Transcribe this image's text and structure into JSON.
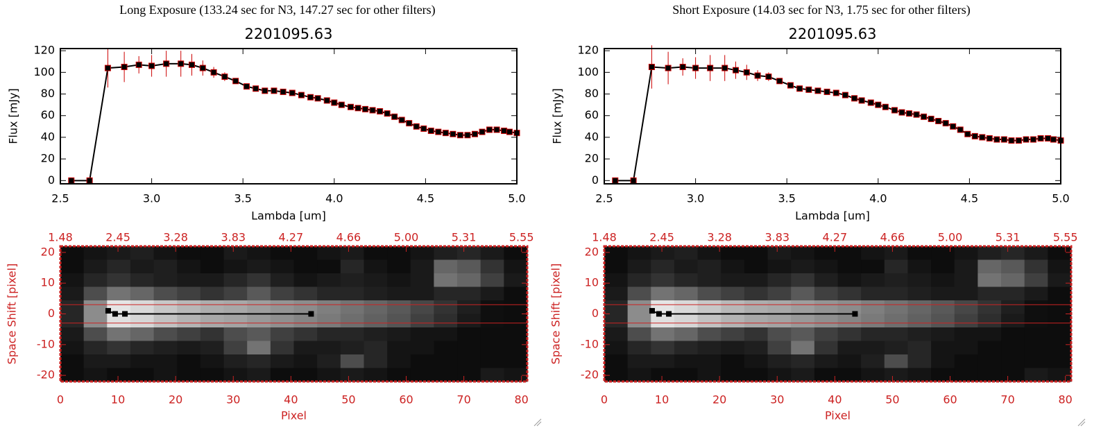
{
  "chart_data": [
    {
      "type": "line",
      "title": "Long Exposure (133.24 sec for N3, 147.27 sec for other filters)",
      "subtitle": "2201095.63",
      "x_label": "Lambda [um]",
      "y_label": "Flux [mJy]",
      "color": "#000000",
      "error_color": "#cc0000",
      "x": [
        2.56,
        2.66,
        2.76,
        2.85,
        2.93,
        3.0,
        3.08,
        3.16,
        3.22,
        3.28,
        3.34,
        3.4,
        3.46,
        3.52,
        3.57,
        3.62,
        3.67,
        3.72,
        3.77,
        3.82,
        3.87,
        3.91,
        3.96,
        4.0,
        4.04,
        4.09,
        4.13,
        4.17,
        4.21,
        4.25,
        4.29,
        4.33,
        4.37,
        4.41,
        4.45,
        4.49,
        4.53,
        4.57,
        4.61,
        4.65,
        4.69,
        4.73,
        4.77,
        4.81,
        4.85,
        4.89,
        4.93,
        4.96,
        5.0
      ],
      "values": [
        0,
        0,
        104,
        105,
        107,
        106,
        108,
        108,
        107,
        104,
        100,
        96,
        92,
        87,
        85,
        83,
        83,
        82,
        81,
        79,
        77,
        76,
        74,
        72,
        70,
        68,
        67,
        66,
        65,
        64,
        62,
        59,
        56,
        53,
        50,
        48,
        46,
        45,
        44,
        43,
        42,
        42,
        43,
        45,
        47,
        47,
        46,
        45,
        44
      ],
      "errors": [
        0,
        0,
        18,
        14,
        8,
        10,
        12,
        12,
        10,
        7,
        5,
        4,
        2,
        2,
        1,
        1,
        1,
        1,
        1,
        1,
        1,
        1,
        1,
        1,
        1,
        1,
        1,
        1,
        1,
        1,
        1,
        1,
        1,
        1,
        1,
        1,
        1,
        1,
        1,
        1,
        1,
        1,
        1,
        1,
        2,
        1,
        1,
        1,
        1
      ],
      "xlim": [
        2.5,
        5.0
      ],
      "xticks": [
        2.5,
        {
          "value": 3,
          "label": "3.0"
        },
        3.5,
        {
          "value": 4,
          "label": "4.0"
        },
        4.5,
        {
          "value": 5,
          "label": "5.0"
        }
      ],
      "ylim": [
        -3,
        122
      ],
      "yticks": [
        0,
        20,
        40,
        60,
        80,
        100,
        120
      ]
    },
    {
      "type": "heatmap",
      "x_label": "Pixel",
      "y_label": "Space Shift [pixel]",
      "axis_color": "#cc2222",
      "xlim": [
        0,
        81
      ],
      "xticks": [
        0,
        10,
        20,
        30,
        40,
        50,
        60,
        70,
        80
      ],
      "x2ticks": [
        {
          "value": 0,
          "label": "1.48"
        },
        {
          "value": 10,
          "label": "2.45"
        },
        {
          "value": 20,
          "label": "3.28"
        },
        {
          "value": 30,
          "label": "3.83"
        },
        {
          "value": 40,
          "label": "4.27"
        },
        {
          "value": 50,
          "label": "4.66"
        },
        {
          "value": 60,
          "label": "5.00"
        },
        {
          "value": 70,
          "label": "5.31"
        },
        {
          "value": 80,
          "label": "5.55"
        }
      ],
      "ylim": [
        -22,
        22
      ],
      "yticks": [
        -20,
        -10,
        0,
        10,
        20
      ],
      "hlines": [
        3,
        -3
      ],
      "trace": {
        "x": [
          8.3,
          9.5,
          11.2,
          43.5
        ],
        "values": [
          1,
          0,
          0,
          0
        ]
      },
      "values": [
        [
          5,
          8,
          10,
          12,
          8,
          5,
          5,
          10,
          8,
          5,
          5,
          8,
          10,
          5,
          5,
          8,
          12,
          15,
          10,
          5
        ],
        [
          5,
          10,
          15,
          10,
          12,
          8,
          5,
          8,
          10,
          8,
          5,
          5,
          15,
          8,
          5,
          10,
          40,
          35,
          20,
          8
        ],
        [
          8,
          15,
          20,
          15,
          12,
          10,
          10,
          15,
          20,
          12,
          8,
          10,
          12,
          10,
          8,
          10,
          45,
          40,
          25,
          10
        ],
        [
          10,
          30,
          45,
          40,
          30,
          25,
          20,
          25,
          35,
          25,
          20,
          15,
          15,
          12,
          10,
          10,
          15,
          15,
          10,
          5
        ],
        [
          15,
          55,
          90,
          85,
          78,
          72,
          68,
          66,
          62,
          58,
          55,
          50,
          45,
          40,
          35,
          28,
          20,
          12,
          6,
          5
        ],
        [
          15,
          55,
          88,
          84,
          76,
          70,
          66,
          64,
          60,
          56,
          52,
          48,
          43,
          38,
          33,
          25,
          18,
          10,
          6,
          5
        ],
        [
          10,
          30,
          45,
          40,
          30,
          25,
          20,
          30,
          35,
          25,
          20,
          15,
          15,
          12,
          10,
          8,
          8,
          5,
          5,
          5
        ],
        [
          8,
          15,
          20,
          15,
          12,
          10,
          12,
          25,
          45,
          20,
          10,
          10,
          12,
          15,
          8,
          8,
          5,
          5,
          5,
          5
        ],
        [
          5,
          10,
          10,
          8,
          8,
          5,
          8,
          12,
          15,
          10,
          8,
          12,
          30,
          15,
          8,
          5,
          5,
          5,
          5,
          5
        ],
        [
          5,
          8,
          5,
          5,
          8,
          5,
          5,
          8,
          10,
          5,
          5,
          8,
          10,
          8,
          5,
          5,
          5,
          5,
          10,
          8
        ]
      ]
    },
    {
      "type": "line",
      "title": "Short Exposure (14.03 sec for N3, 1.75 sec for other filters)",
      "subtitle": "2201095.63",
      "x_label": "Lambda [um]",
      "y_label": "Flux [mJy]",
      "color": "#000000",
      "error_color": "#cc0000",
      "x": [
        2.56,
        2.66,
        2.76,
        2.85,
        2.93,
        3.0,
        3.08,
        3.16,
        3.22,
        3.28,
        3.34,
        3.4,
        3.46,
        3.52,
        3.57,
        3.62,
        3.67,
        3.72,
        3.77,
        3.82,
        3.87,
        3.91,
        3.96,
        4.0,
        4.04,
        4.09,
        4.13,
        4.17,
        4.21,
        4.25,
        4.29,
        4.33,
        4.37,
        4.41,
        4.45,
        4.49,
        4.53,
        4.57,
        4.61,
        4.65,
        4.69,
        4.73,
        4.77,
        4.81,
        4.85,
        4.89,
        4.93,
        4.96,
        5.0
      ],
      "values": [
        0,
        0,
        105,
        104,
        105,
        104,
        104,
        104,
        102,
        100,
        97,
        96,
        92,
        88,
        85,
        84,
        83,
        82,
        81,
        79,
        76,
        74,
        72,
        70,
        68,
        65,
        63,
        62,
        61,
        59,
        57,
        55,
        53,
        50,
        47,
        43,
        41,
        40,
        39,
        38,
        38,
        37,
        37,
        38,
        38,
        39,
        39,
        38,
        37
      ],
      "errors": [
        0,
        0,
        20,
        15,
        8,
        10,
        12,
        12,
        8,
        7,
        5,
        4,
        2,
        2,
        1,
        1,
        1,
        1,
        1,
        1,
        1,
        1,
        1,
        1,
        1,
        1,
        1,
        1,
        1,
        1,
        1,
        1,
        1,
        1,
        1,
        1,
        1,
        1,
        1,
        1,
        1,
        1,
        1,
        1,
        1,
        1,
        1,
        1,
        1
      ],
      "xlim": [
        2.5,
        5.0
      ],
      "xticks": [
        2.5,
        {
          "value": 3,
          "label": "3.0"
        },
        3.5,
        {
          "value": 4,
          "label": "4.0"
        },
        4.5,
        {
          "value": 5,
          "label": "5.0"
        }
      ],
      "ylim": [
        -3,
        122
      ],
      "yticks": [
        0,
        20,
        40,
        60,
        80,
        100,
        120
      ]
    },
    {
      "type": "heatmap",
      "x_label": "Pixel",
      "y_label": "Space Shift [pixel]",
      "axis_color": "#cc2222",
      "xlim": [
        0,
        81
      ],
      "xticks": [
        0,
        10,
        20,
        30,
        40,
        50,
        60,
        70,
        80
      ],
      "x2ticks": [
        {
          "value": 0,
          "label": "1.48"
        },
        {
          "value": 10,
          "label": "2.45"
        },
        {
          "value": 20,
          "label": "3.28"
        },
        {
          "value": 30,
          "label": "3.83"
        },
        {
          "value": 40,
          "label": "4.27"
        },
        {
          "value": 50,
          "label": "4.66"
        },
        {
          "value": 60,
          "label": "5.00"
        },
        {
          "value": 70,
          "label": "5.31"
        },
        {
          "value": 80,
          "label": "5.55"
        }
      ],
      "ylim": [
        -22,
        22
      ],
      "yticks": [
        -20,
        -10,
        0,
        10,
        20
      ],
      "hlines": [
        3,
        -3
      ],
      "trace": {
        "x": [
          8.3,
          9.5,
          11.2,
          43.5
        ],
        "values": [
          1,
          0,
          0,
          0
        ]
      },
      "values": [
        [
          5,
          8,
          10,
          12,
          8,
          5,
          5,
          10,
          8,
          5,
          5,
          8,
          10,
          5,
          5,
          8,
          12,
          15,
          10,
          5
        ],
        [
          5,
          10,
          15,
          10,
          12,
          8,
          5,
          8,
          10,
          8,
          5,
          5,
          15,
          8,
          5,
          10,
          40,
          35,
          20,
          8
        ],
        [
          8,
          15,
          20,
          15,
          12,
          10,
          10,
          15,
          20,
          12,
          8,
          10,
          12,
          10,
          8,
          10,
          45,
          40,
          25,
          10
        ],
        [
          10,
          30,
          45,
          40,
          30,
          25,
          20,
          25,
          35,
          25,
          20,
          15,
          15,
          12,
          10,
          10,
          15,
          15,
          10,
          5
        ],
        [
          15,
          55,
          90,
          85,
          78,
          72,
          68,
          66,
          62,
          58,
          55,
          50,
          45,
          40,
          35,
          28,
          20,
          12,
          6,
          5
        ],
        [
          15,
          55,
          88,
          84,
          76,
          70,
          66,
          64,
          60,
          56,
          52,
          48,
          43,
          38,
          33,
          25,
          18,
          10,
          6,
          5
        ],
        [
          10,
          30,
          45,
          40,
          30,
          25,
          20,
          30,
          35,
          25,
          20,
          15,
          15,
          12,
          10,
          8,
          8,
          5,
          5,
          5
        ],
        [
          8,
          15,
          20,
          15,
          12,
          10,
          12,
          25,
          45,
          20,
          10,
          10,
          12,
          15,
          8,
          8,
          5,
          5,
          5,
          5
        ],
        [
          5,
          10,
          10,
          8,
          8,
          5,
          8,
          12,
          15,
          10,
          8,
          12,
          30,
          15,
          8,
          5,
          5,
          5,
          5,
          5
        ],
        [
          5,
          8,
          5,
          5,
          8,
          5,
          5,
          8,
          10,
          5,
          5,
          8,
          10,
          8,
          5,
          5,
          5,
          5,
          10,
          8
        ]
      ]
    }
  ]
}
